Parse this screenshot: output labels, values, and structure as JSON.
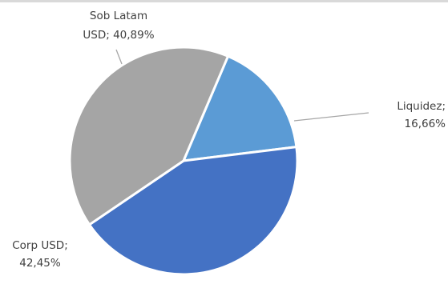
{
  "chart_data": {
    "type": "pie",
    "start_angle_deg": 23,
    "direction": "clockwise",
    "slices": [
      {
        "label_lines": [
          "Liquidez;",
          "16,66%"
        ],
        "category": "Liquidez",
        "value": 16.66,
        "color": "#5b9bd5"
      },
      {
        "label_lines": [
          "Corp USD;",
          "42,45%"
        ],
        "category": "Corp USD",
        "value": 42.45,
        "color": "#4472c4"
      },
      {
        "label_lines": [
          "Sob Latam",
          "USD; 40,89%"
        ],
        "category": "Sob Latam USD",
        "value": 40.89,
        "color": "#a5a5a5"
      }
    ]
  }
}
